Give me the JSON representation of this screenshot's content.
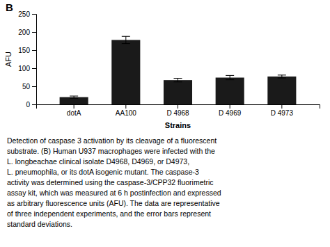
{
  "chart_data": {
    "type": "bar",
    "categories": [
      "dotA",
      "AA100",
      "D 4968",
      "D 4969",
      "D 4973"
    ],
    "values": [
      20,
      178,
      67,
      74,
      77
    ],
    "errors": [
      3,
      10,
      5,
      6,
      4
    ],
    "color": "#1a1a1a",
    "xlabel": "Strains",
    "ylabel": "AFU",
    "ylim": [
      0,
      250
    ],
    "yticks": [
      0,
      50,
      100,
      150,
      200,
      250
    ],
    "grid": false,
    "annotations": [
      "B",
      "Detection of caspase 3 activation by its cleavage of a fluorescent",
      "substrate. (B) Human U937 macrophages were infected with the",
      "L. longbeachae clinical isolate D4968, D4969, or D4973,",
      "L. pneumophila, or its dotA isogenic mutant. The caspase-3",
      "activity was determined using the caspase-3/CPP32 fluorimetric",
      "assay kit, which was measured at 6 h postinfection and expressed",
      "as arbitrary fluorescence units (AFU). The data are representative",
      "of three independent experiments, and the error bars represent",
      "standard deviations."
    ]
  }
}
